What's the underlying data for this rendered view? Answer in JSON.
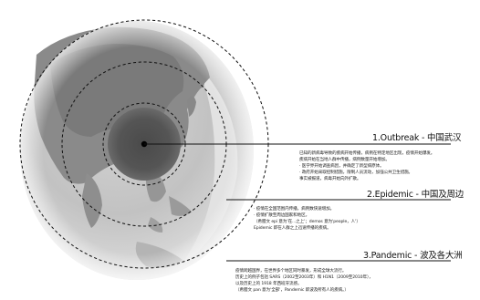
{
  "stages": [
    {
      "title": "1.Outbreak - 中国武汉",
      "lines": [
        "已知的新病毒导致的疾病开始传播，病例在特定地区出现，疫情开始爆发。",
        "疾病开始在当地人群中传播，病例数量开始增加。",
        "· 医学界开始调查病因，并确定了新型病原体。",
        "· 政府开始采取控制措施，限制人员流动，加强公共卫生措施。",
        "事实被报道，病毒开始向外扩散。"
      ]
    },
    {
      "title": "2.Epidemic - 中国及周边",
      "lines": [
        "· 疫情在全国范围内传播，病例数快速增加。",
        "· 疫情扩散至周边国家和地区。",
        "（希腊文 epi 意为'在...之上'；demos 意为'people，人'）",
        "Epidemic 即在人群之上迅速传播的疾病。"
      ]
    },
    {
      "title": "3.Pandemic - 波及各大洲",
      "lines": [
        "疫情跨越国界，在世界多个地区同时暴发，形成全球大流行。",
        "历史上的例子包括 SARS（2002至2003年）和 H1N1（2009至2010年），",
        "以及历史上的 1918 年西班牙流感。",
        "（希腊文 pan 意为'全部'，Pandemic 即波及所有人的疾病。）"
      ]
    }
  ]
}
